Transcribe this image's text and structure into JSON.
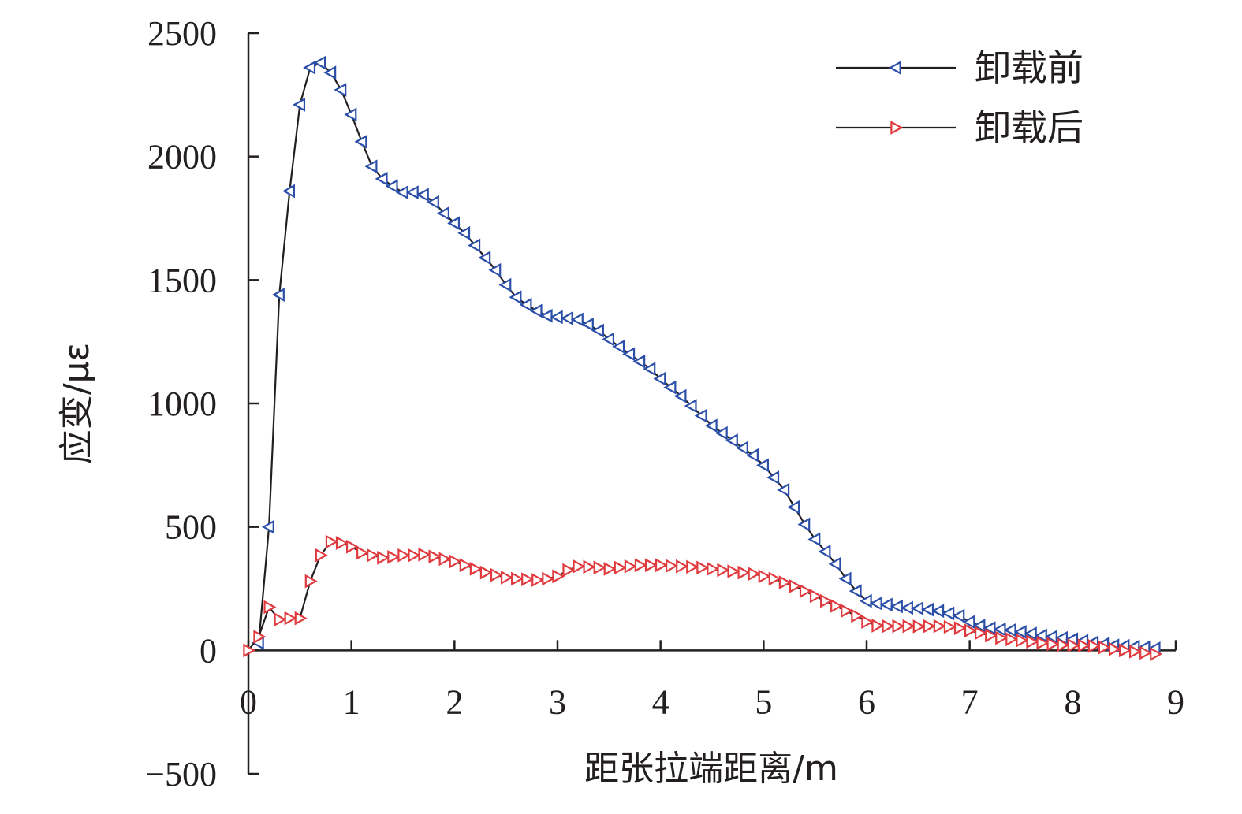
{
  "chart_data": {
    "type": "line",
    "xlabel": "距张拉端距离/m",
    "ylabel": "应变/με",
    "xlim": [
      0,
      9
    ],
    "ylim": [
      -500,
      2500
    ],
    "xticks": [
      0,
      1,
      2,
      3,
      4,
      5,
      6,
      7,
      8,
      9
    ],
    "yticks": [
      -500,
      0,
      500,
      1000,
      1500,
      2000,
      2500
    ],
    "ytick_labels": [
      "−500",
      "0",
      "500",
      "1000",
      "1500",
      "2000",
      "2500"
    ],
    "grid": false,
    "legend_position": "top-right",
    "series": [
      {
        "name": "卸载前",
        "line_color": "#231f20",
        "marker_color": "#2b4fa8",
        "marker": "triangle-left",
        "x": [
          0.1,
          0.2,
          0.3,
          0.4,
          0.5,
          0.6,
          0.7,
          0.8,
          0.9,
          1.0,
          1.1,
          1.2,
          1.3,
          1.4,
          1.5,
          1.6,
          1.7,
          1.8,
          1.9,
          2.0,
          2.1,
          2.2,
          2.3,
          2.4,
          2.5,
          2.6,
          2.7,
          2.8,
          2.9,
          3.0,
          3.1,
          3.2,
          3.3,
          3.4,
          3.5,
          3.6,
          3.7,
          3.8,
          3.9,
          4.0,
          4.1,
          4.2,
          4.3,
          4.4,
          4.5,
          4.6,
          4.7,
          4.8,
          4.9,
          5.0,
          5.1,
          5.2,
          5.3,
          5.4,
          5.5,
          5.6,
          5.7,
          5.8,
          5.9,
          6.0,
          6.1,
          6.2,
          6.3,
          6.4,
          6.5,
          6.6,
          6.7,
          6.8,
          6.9,
          7.0,
          7.1,
          7.2,
          7.3,
          7.4,
          7.5,
          7.6,
          7.7,
          7.8,
          7.9,
          8.0,
          8.1,
          8.2,
          8.3,
          8.4,
          8.5,
          8.6,
          8.7,
          8.8
        ],
        "values": [
          30,
          500,
          1440,
          1860,
          2210,
          2360,
          2380,
          2340,
          2270,
          2170,
          2060,
          1960,
          1910,
          1880,
          1855,
          1855,
          1845,
          1815,
          1770,
          1730,
          1690,
          1640,
          1590,
          1540,
          1480,
          1430,
          1400,
          1375,
          1355,
          1350,
          1345,
          1340,
          1320,
          1295,
          1260,
          1230,
          1200,
          1170,
          1140,
          1100,
          1065,
          1030,
          990,
          950,
          910,
          880,
          850,
          820,
          790,
          750,
          700,
          650,
          580,
          510,
          450,
          400,
          350,
          290,
          240,
          200,
          190,
          185,
          178,
          172,
          170,
          165,
          160,
          150,
          140,
          115,
          100,
          90,
          85,
          82,
          75,
          68,
          60,
          55,
          50,
          45,
          38,
          32,
          25,
          20,
          18,
          15,
          12,
          8
        ]
      },
      {
        "name": "卸载后",
        "line_color": "#231f20",
        "marker_color": "#e03a3e",
        "marker": "triangle-right",
        "x": [
          0.0,
          0.1,
          0.2,
          0.3,
          0.4,
          0.5,
          0.6,
          0.7,
          0.8,
          0.9,
          1.0,
          1.1,
          1.2,
          1.3,
          1.4,
          1.5,
          1.6,
          1.7,
          1.8,
          1.9,
          2.0,
          2.1,
          2.2,
          2.3,
          2.4,
          2.5,
          2.6,
          2.7,
          2.8,
          2.9,
          3.0,
          3.1,
          3.2,
          3.3,
          3.4,
          3.5,
          3.6,
          3.7,
          3.8,
          3.9,
          4.0,
          4.1,
          4.2,
          4.3,
          4.4,
          4.5,
          4.6,
          4.7,
          4.8,
          4.9,
          5.0,
          5.1,
          5.2,
          5.3,
          5.4,
          5.5,
          5.6,
          5.7,
          5.8,
          5.9,
          6.0,
          6.1,
          6.2,
          6.3,
          6.4,
          6.5,
          6.6,
          6.7,
          6.8,
          6.9,
          7.0,
          7.1,
          7.2,
          7.3,
          7.4,
          7.5,
          7.6,
          7.7,
          7.8,
          7.9,
          8.0,
          8.1,
          8.2,
          8.3,
          8.4,
          8.5,
          8.6,
          8.7,
          8.8
        ],
        "values": [
          0,
          55,
          175,
          125,
          130,
          130,
          280,
          385,
          440,
          435,
          420,
          395,
          385,
          375,
          378,
          385,
          385,
          388,
          380,
          370,
          360,
          345,
          330,
          315,
          305,
          295,
          290,
          288,
          285,
          290,
          300,
          325,
          340,
          338,
          335,
          330,
          335,
          340,
          345,
          345,
          345,
          342,
          340,
          338,
          335,
          330,
          325,
          320,
          315,
          310,
          300,
          290,
          275,
          260,
          240,
          220,
          200,
          180,
          160,
          140,
          115,
          100,
          98,
          98,
          98,
          97,
          98,
          98,
          95,
          90,
          80,
          70,
          60,
          50,
          45,
          40,
          35,
          30,
          25,
          22,
          20,
          20,
          18,
          12,
          5,
          0,
          -5,
          -10,
          -15
        ]
      }
    ]
  }
}
